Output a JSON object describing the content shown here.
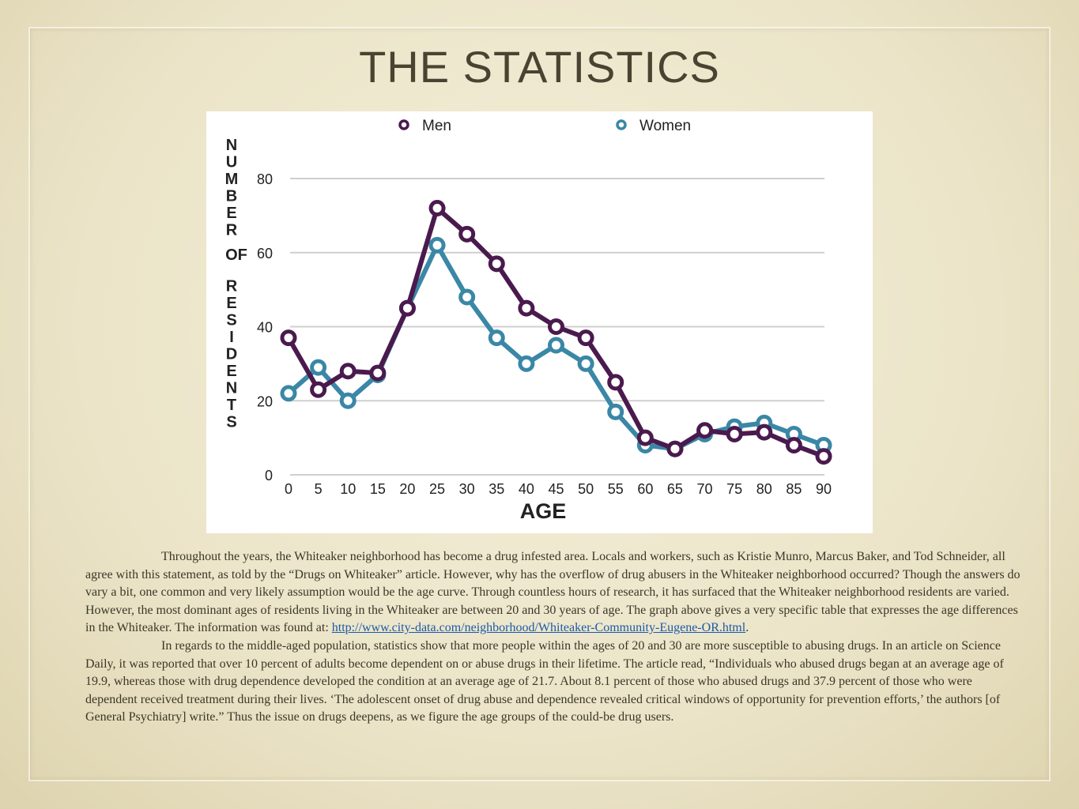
{
  "slide": {
    "title": "THE STATISTICS"
  },
  "chart_data": {
    "type": "line",
    "title": "",
    "xlabel": "AGE",
    "ylabel": "NUMBER OF RESIDENTS",
    "x": [
      0,
      5,
      10,
      15,
      20,
      25,
      30,
      35,
      40,
      45,
      50,
      55,
      60,
      65,
      70,
      75,
      80,
      85,
      90
    ],
    "ylim": [
      0,
      80
    ],
    "yticks": [
      0,
      20,
      40,
      60,
      80
    ],
    "grid": true,
    "legend_position": "top",
    "series": [
      {
        "name": "Men",
        "color": "#4a1a4e",
        "values": [
          37,
          23,
          28,
          27.5,
          45,
          72,
          65,
          57,
          45,
          40,
          37,
          25,
          10,
          7,
          12,
          11,
          11.5,
          8,
          5
        ]
      },
      {
        "name": "Women",
        "color": "#3a87a6",
        "values": [
          22,
          29,
          20,
          27,
          45,
          62,
          48,
          37,
          30,
          35,
          30,
          17,
          8,
          7,
          11,
          13,
          14,
          11,
          8
        ]
      }
    ]
  },
  "body": {
    "p1": "Throughout the years, the Whiteaker neighborhood has become a drug infested area. Locals and workers, such as Kristie Munro, Marcus Baker, and Tod Schneider, all agree with this statement, as told by the “Drugs on Whiteaker” article. However, why has the overflow of drug abusers in the Whiteaker neighborhood occurred? Though the answers do vary a bit, one common and very likely assumption would be the age curve. Through countless hours of research, it has surfaced that the Whiteaker neighborhood residents are varied. However, the most dominant ages of residents living in the Whiteaker are between 20 and 30 years of age. The graph above gives a very specific table that expresses the age differences in the Whiteaker. The information was found at: ",
    "link": "http://www.city-data.com/neighborhood/Whiteaker-Community-Eugene-OR.html",
    "p1_end": ".",
    "p2": "In regards to the middle-aged population, statistics show that more people within the ages of 20 and 30 are more susceptible to abusing drugs. In an article on Science Daily, it was reported that over 10 percent of adults become dependent on or abuse drugs in their lifetime. The article read, “Individuals who abused drugs began at an average age of 19.9, whereas those with drug dependence developed the condition at an average age of 21.7. About 8.1 percent of those who abused drugs and 37.9 percent of those who were dependent received treatment during their lives. ‘The adolescent onset of drug abuse and dependence revealed critical windows of opportunity for prevention efforts,’ the authors [of General Psychiatry] write.” Thus the issue on drugs deepens, as we figure the age groups of the could-be drug users."
  }
}
